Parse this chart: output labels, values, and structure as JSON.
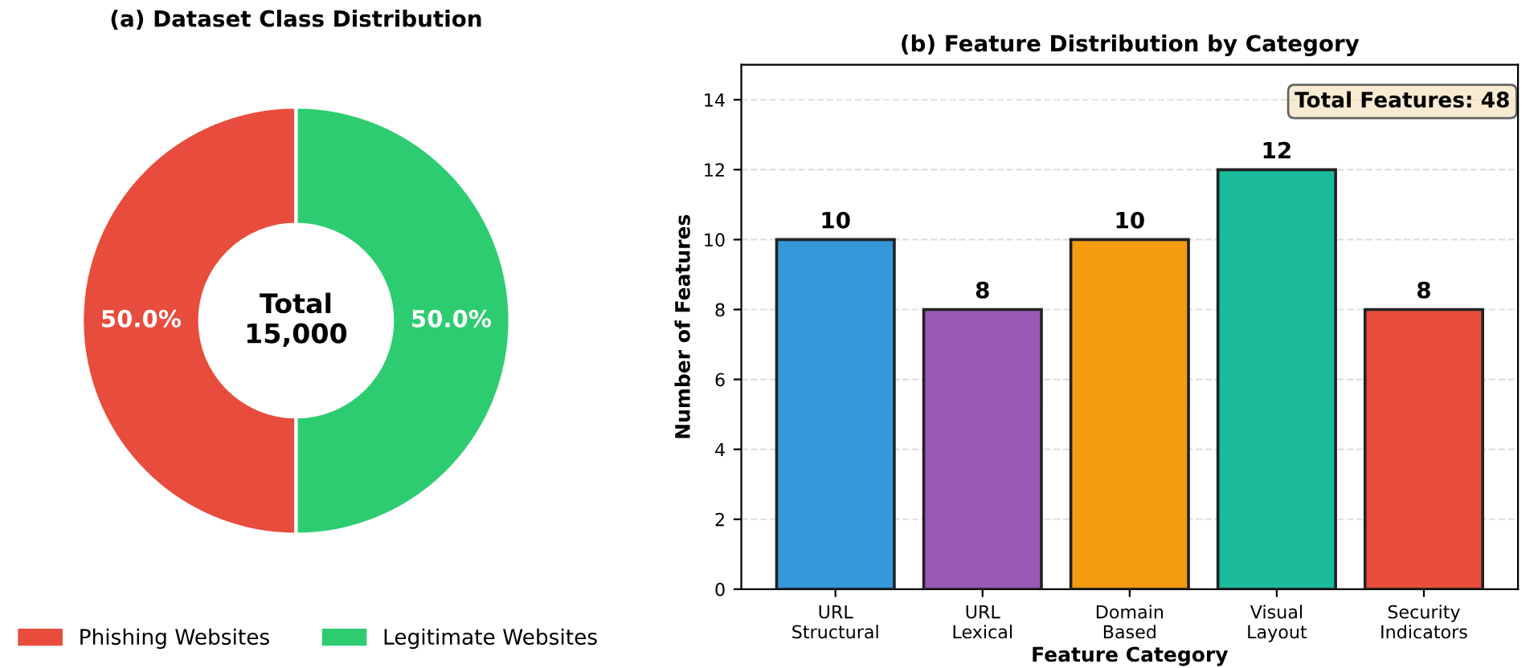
{
  "chart_data": [
    {
      "type": "donut",
      "title": "(a) Dataset Class Distribution",
      "categories": [
        "Phishing Websites",
        "Legitimate Websites"
      ],
      "values": [
        50,
        50
      ],
      "colors": [
        "#e74c3c",
        "#2ecc71"
      ],
      "value_labels": [
        "50.0%",
        "50.0%"
      ],
      "annotations": [
        "Total\n15,000"
      ],
      "legend": "bottom"
    },
    {
      "type": "bar",
      "title": "(b) Feature Distribution by Category",
      "xlabel": "Feature Category",
      "ylabel": "Number of Features",
      "categories": [
        "URL\nStructural",
        "URL\nLexical",
        "Domain\nBased",
        "Visual\nLayout",
        "Security\nIndicators"
      ],
      "values": [
        10,
        8,
        10,
        12,
        8
      ],
      "colors": [
        "#3498db",
        "#9b59b6",
        "#f39c12",
        "#1abc9c",
        "#e74c3c"
      ],
      "ylim": [
        0,
        15
      ],
      "yticks": [
        0,
        2,
        4,
        6,
        8,
        10,
        12,
        14
      ],
      "grid": "y",
      "data_labels": true,
      "annotations": [
        "Total Features: 48"
      ]
    }
  ]
}
